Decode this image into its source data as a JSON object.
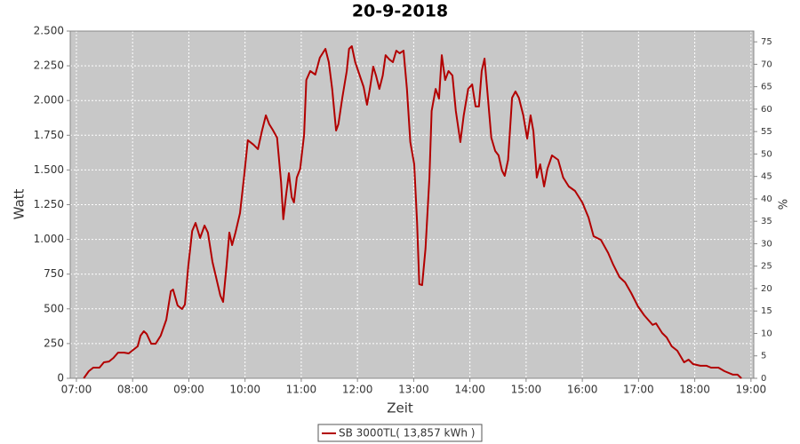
{
  "chart_data": {
    "type": "line",
    "title": "20-9-2018",
    "x_label": "Zeit",
    "y_label": "Watt",
    "y2_label": "%",
    "grid": true,
    "legend": "bottom",
    "x": [
      7.13,
      7.22,
      7.3,
      7.41,
      7.49,
      7.58,
      7.66,
      7.74,
      7.85,
      7.93,
      8.03,
      8.09,
      8.14,
      8.2,
      8.25,
      8.33,
      8.41,
      8.5,
      8.6,
      8.68,
      8.72,
      8.8,
      8.88,
      8.93,
      8.99,
      9.06,
      9.12,
      9.2,
      9.28,
      9.34,
      9.42,
      9.48,
      9.56,
      9.61,
      9.67,
      9.72,
      9.77,
      9.83,
      9.91,
      9.99,
      10.05,
      10.15,
      10.23,
      10.3,
      10.37,
      10.43,
      10.49,
      10.57,
      10.64,
      10.68,
      10.73,
      10.78,
      10.83,
      10.87,
      10.92,
      10.98,
      11.05,
      11.09,
      11.16,
      11.25,
      11.33,
      11.43,
      11.49,
      11.55,
      11.62,
      11.66,
      11.73,
      11.81,
      11.85,
      11.9,
      11.96,
      12.04,
      12.11,
      12.17,
      12.22,
      12.28,
      12.33,
      12.39,
      12.45,
      12.5,
      12.57,
      12.63,
      12.69,
      12.75,
      12.82,
      12.88,
      12.94,
      13.01,
      13.06,
      13.1,
      13.15,
      13.21,
      13.28,
      13.32,
      13.39,
      13.45,
      13.5,
      13.56,
      13.62,
      13.69,
      13.75,
      13.83,
      13.89,
      13.97,
      14.04,
      14.1,
      14.16,
      14.21,
      14.26,
      14.32,
      14.38,
      14.45,
      14.51,
      14.57,
      14.62,
      14.68,
      14.75,
      14.81,
      14.87,
      14.95,
      15.02,
      15.08,
      15.13,
      15.19,
      15.25,
      15.32,
      15.38,
      15.46,
      15.57,
      15.66,
      15.76,
      15.87,
      16.0,
      16.11,
      16.2,
      16.33,
      16.46,
      16.55,
      16.66,
      16.76,
      16.87,
      16.99,
      17.1,
      17.25,
      17.31,
      17.42,
      17.5,
      17.59,
      17.69,
      17.81,
      17.89,
      17.97,
      18.1,
      18.21,
      18.29,
      18.42,
      18.53,
      18.68,
      18.76,
      18.83
    ],
    "series": [
      {
        "name": "SB 3000TL( 13,857 kWh )",
        "color": "#b20000",
        "values": [
          0,
          51,
          77,
          77,
          115,
          121,
          147,
          185,
          185,
          179,
          211,
          230,
          307,
          339,
          320,
          249,
          249,
          307,
          422,
          627,
          639,
          524,
          499,
          531,
          806,
          1061,
          1119,
          1010,
          1100,
          1049,
          838,
          735,
          595,
          550,
          806,
          1049,
          959,
          1049,
          1189,
          1477,
          1714,
          1682,
          1650,
          1778,
          1893,
          1829,
          1790,
          1733,
          1413,
          1145,
          1317,
          1477,
          1304,
          1266,
          1445,
          1509,
          1752,
          2148,
          2212,
          2187,
          2308,
          2372,
          2276,
          2084,
          1784,
          1829,
          2020,
          2212,
          2372,
          2391,
          2276,
          2180,
          2097,
          1969,
          2084,
          2244,
          2180,
          2084,
          2180,
          2327,
          2295,
          2276,
          2359,
          2340,
          2359,
          2084,
          1701,
          1541,
          1125,
          678,
          671,
          934,
          1445,
          1925,
          2084,
          2014,
          2327,
          2148,
          2212,
          2180,
          1925,
          1701,
          1893,
          2084,
          2116,
          1957,
          1957,
          2212,
          2302,
          2020,
          1733,
          1637,
          1605,
          1496,
          1458,
          1573,
          2020,
          2065,
          2020,
          1893,
          1726,
          1893,
          1778,
          1445,
          1541,
          1381,
          1509,
          1605,
          1573,
          1445,
          1381,
          1349,
          1266,
          1157,
          1023,
          997,
          902,
          818,
          729,
          691,
          614,
          518,
          454,
          384,
          396,
          326,
          294,
          230,
          198,
          115,
          134,
          102,
          90,
          90,
          77,
          77,
          51,
          26,
          26,
          0
        ]
      }
    ],
    "xlim": [
      6.89,
      19.05
    ],
    "xticks": [
      {
        "value": 7,
        "label": "07:00"
      },
      {
        "value": 8,
        "label": "08:00"
      },
      {
        "value": 9,
        "label": "09:00"
      },
      {
        "value": 10,
        "label": "10:00"
      },
      {
        "value": 11,
        "label": "11:00"
      },
      {
        "value": 12,
        "label": "12:00"
      },
      {
        "value": 13,
        "label": "13:00"
      },
      {
        "value": 14,
        "label": "14:00"
      },
      {
        "value": 15,
        "label": "15:00"
      },
      {
        "value": 16,
        "label": "16:00"
      },
      {
        "value": 17,
        "label": "17:00"
      },
      {
        "value": 18,
        "label": "18:00"
      },
      {
        "value": 19,
        "label": "19:00"
      }
    ],
    "ylim": [
      0,
      2500
    ],
    "yticks": [
      0,
      250,
      500,
      750,
      {
        "value": 1000,
        "label": "1.000"
      },
      {
        "value": 1250,
        "label": "1.250"
      },
      {
        "value": 1500,
        "label": "1.500"
      },
      {
        "value": 1750,
        "label": "1.750"
      },
      {
        "value": 2000,
        "label": "2.000"
      },
      {
        "value": 2250,
        "label": "2.250"
      },
      {
        "value": 2500,
        "label": "2.500"
      }
    ],
    "y2lim": [
      0,
      77.4
    ],
    "y2ticks": [
      0,
      5,
      10,
      15,
      20,
      25,
      30,
      35,
      40,
      45,
      50,
      55,
      60,
      65,
      70,
      75
    ]
  }
}
